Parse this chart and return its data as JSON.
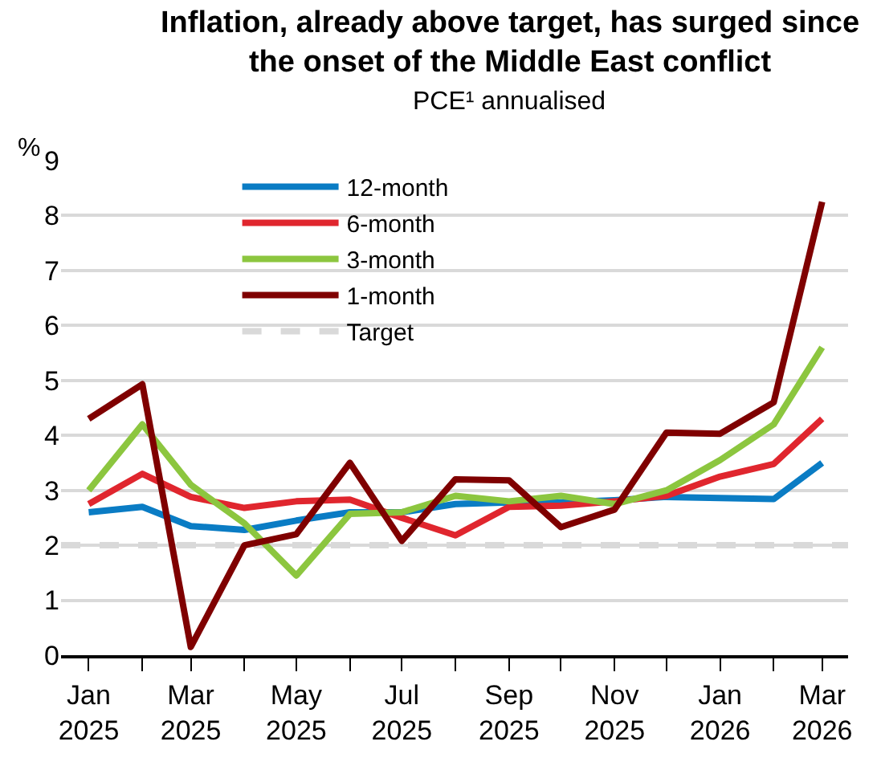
{
  "chart_data": {
    "type": "line",
    "title": "Inflation, already above target, has surged since the onset of the Middle East conflict",
    "subtitle": "PCE¹ annualised",
    "ylabel": "%",
    "x": [
      "2025-01",
      "2025-02",
      "2025-03",
      "2025-04",
      "2025-05",
      "2025-06",
      "2025-07",
      "2025-08",
      "2025-09",
      "2025-10",
      "2025-11",
      "2025-12",
      "2026-01",
      "2026-02",
      "2026-03"
    ],
    "series": [
      {
        "name": "12-month",
        "color": "#0a7cc4",
        "values": [
          2.6,
          2.7,
          2.35,
          2.28,
          2.45,
          2.6,
          2.6,
          2.75,
          2.78,
          2.78,
          2.82,
          2.88,
          2.86,
          2.84,
          3.5
        ]
      },
      {
        "name": "6-month",
        "color": "#e0262e",
        "values": [
          2.75,
          3.3,
          2.88,
          2.68,
          2.8,
          2.83,
          2.5,
          2.18,
          2.7,
          2.72,
          2.8,
          2.9,
          3.25,
          3.48,
          4.3
        ]
      },
      {
        "name": "3-month",
        "color": "#8cc63f",
        "values": [
          3.0,
          4.2,
          3.1,
          2.4,
          1.45,
          2.57,
          2.6,
          2.9,
          2.8,
          2.9,
          2.75,
          3.0,
          3.55,
          4.2,
          5.6
        ]
      },
      {
        "name": "1-month",
        "color": "#7f0000",
        "values": [
          4.3,
          4.93,
          0.15,
          2.0,
          2.2,
          3.5,
          2.08,
          3.2,
          3.18,
          2.33,
          2.65,
          4.05,
          4.03,
          4.6,
          8.25
        ]
      }
    ],
    "ref_lines": [
      {
        "axis": "y",
        "value": 2,
        "label": "Target",
        "color": "#d9d9d9",
        "line_style": "dashed"
      }
    ],
    "xlim": [
      "2024-12-16",
      "2026-03-16"
    ],
    "xticks": [
      {
        "value": "2025-01",
        "label": "Jan 2025"
      },
      {
        "value": "2025-02",
        "label": null
      },
      {
        "value": "2025-03",
        "label": "Mar 2025"
      },
      {
        "value": "2025-04",
        "label": null
      },
      {
        "value": "2025-05",
        "label": "May 2025"
      },
      {
        "value": "2025-06",
        "label": null
      },
      {
        "value": "2025-07",
        "label": "Jul 2025"
      },
      {
        "value": "2025-08",
        "label": null
      },
      {
        "value": "2025-09",
        "label": "Sep 2025"
      },
      {
        "value": "2025-10",
        "label": null
      },
      {
        "value": "2025-11",
        "label": "Nov 2025"
      },
      {
        "value": "2025-12",
        "label": null
      },
      {
        "value": "2026-01",
        "label": "Jan 2026"
      },
      {
        "value": "2026-02",
        "label": null
      },
      {
        "value": "2026-03",
        "label": "Mar 2026"
      }
    ],
    "ylim": [
      0,
      9
    ],
    "yticks": [
      0,
      1,
      2,
      3,
      4,
      5,
      6,
      7,
      8,
      9
    ],
    "grid": "y",
    "legend": "top",
    "marker": "none",
    "line_style": "solid"
  }
}
